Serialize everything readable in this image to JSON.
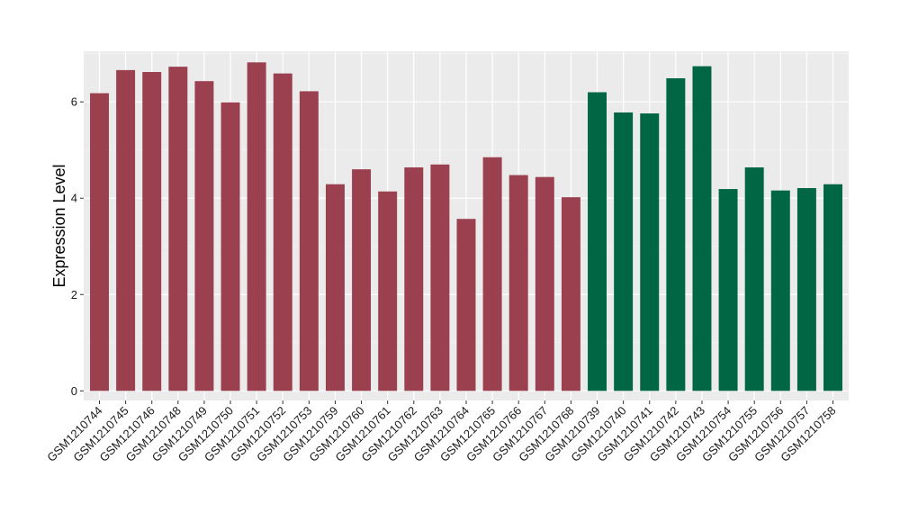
{
  "chart_data": {
    "type": "bar",
    "title": "",
    "xlabel": "",
    "ylabel": "Expression Level",
    "ylim": [
      -0.2,
      7.05
    ],
    "yticks": [
      0,
      2,
      4,
      6
    ],
    "grid": true,
    "legend": "none",
    "background": "#ebebeb",
    "categories": [
      "GSM1210744",
      "GSM1210745",
      "GSM1210746",
      "GSM1210748",
      "GSM1210749",
      "GSM1210750",
      "GSM1210751",
      "GSM1210752",
      "GSM1210753",
      "GSM1210759",
      "GSM1210760",
      "GSM1210761",
      "GSM1210762",
      "GSM1210763",
      "GSM1210764",
      "GSM1210765",
      "GSM1210766",
      "GSM1210767",
      "GSM1210768",
      "GSM1210739",
      "GSM1210740",
      "GSM1210741",
      "GSM1210742",
      "GSM1210743",
      "GSM1210754",
      "GSM1210755",
      "GSM1210756",
      "GSM1210757",
      "GSM1210758"
    ],
    "values": [
      6.18,
      6.66,
      6.62,
      6.73,
      6.43,
      5.99,
      6.82,
      6.59,
      6.22,
      4.29,
      4.6,
      4.14,
      4.64,
      4.7,
      3.57,
      4.85,
      4.48,
      4.44,
      4.02,
      6.2,
      5.78,
      5.76,
      6.49,
      6.74,
      4.19,
      4.64,
      4.16,
      4.21,
      4.29
    ],
    "colors": [
      "#9a404f",
      "#9a404f",
      "#9a404f",
      "#9a404f",
      "#9a404f",
      "#9a404f",
      "#9a404f",
      "#9a404f",
      "#9a404f",
      "#9a404f",
      "#9a404f",
      "#9a404f",
      "#9a404f",
      "#9a404f",
      "#9a404f",
      "#9a404f",
      "#9a404f",
      "#9a404f",
      "#9a404f",
      "#006644",
      "#006644",
      "#006644",
      "#006644",
      "#006644",
      "#006644",
      "#006644",
      "#006644",
      "#006644",
      "#006644"
    ]
  }
}
